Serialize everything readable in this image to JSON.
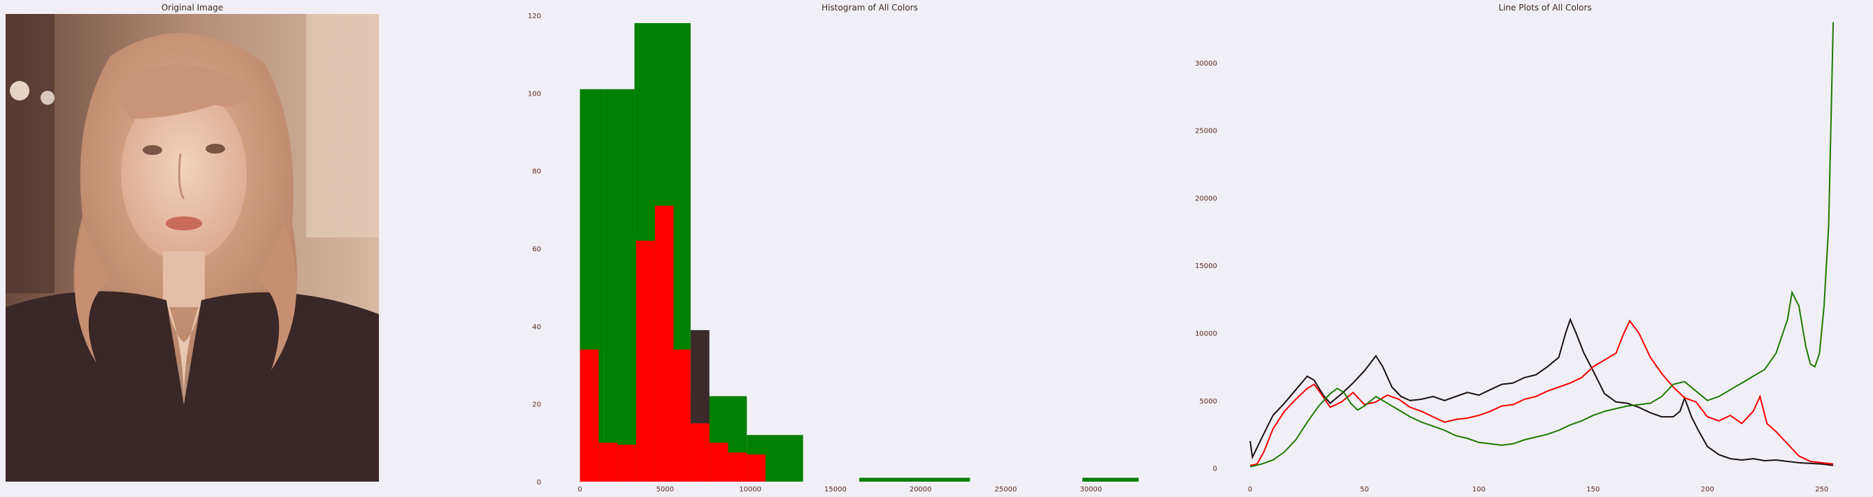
{
  "panels": {
    "image_title": "Original Image",
    "hist_title": "Histogram of All Colors",
    "line_title": "Line Plots of All Colors"
  },
  "colors": {
    "background": "#f0eff6",
    "red": "#ff0000",
    "green": "#008000",
    "dark": "#3d2b2b",
    "line_black": "#1a0f0f",
    "line_red": "#ff0000",
    "line_green": "#1e7a00"
  },
  "chart_data": [
    {
      "type": "bar",
      "title": "Histogram of All Colors",
      "xlabel": "",
      "ylabel": "",
      "xlim": [
        -800,
        34500
      ],
      "ylim": [
        0,
        120
      ],
      "grid": false,
      "xticks": [
        0,
        5000,
        10000,
        15000,
        20000,
        25000,
        30000
      ],
      "yticks": [
        0,
        20,
        40,
        60,
        80,
        100,
        120
      ],
      "series": [
        {
          "color": "green",
          "bins": [
            {
              "x0": 0,
              "x1": 1400,
              "y": 101
            },
            {
              "x0": 1400,
              "x1": 3200,
              "y": 101
            },
            {
              "x0": 3200,
              "x1": 6500,
              "y": 118
            },
            {
              "x0": 6500,
              "x1": 9800,
              "y": 22
            },
            {
              "x0": 9800,
              "x1": 13100,
              "y": 12
            },
            {
              "x0": 16400,
              "x1": 22900,
              "y": 1
            },
            {
              "x0": 29500,
              "x1": 32800,
              "y": 1
            }
          ]
        },
        {
          "color": "dark",
          "bins": [
            {
              "x0": 6500,
              "x1": 7600,
              "y": 39
            }
          ]
        },
        {
          "color": "red",
          "bins": [
            {
              "x0": 0,
              "x1": 1100,
              "y": 34
            },
            {
              "x0": 1100,
              "x1": 2200,
              "y": 10
            },
            {
              "x0": 2200,
              "x1": 3300,
              "y": 9.5
            },
            {
              "x0": 3300,
              "x1": 4400,
              "y": 62
            },
            {
              "x0": 4400,
              "x1": 5500,
              "y": 71
            },
            {
              "x0": 5500,
              "x1": 6500,
              "y": 34
            },
            {
              "x0": 6500,
              "x1": 7600,
              "y": 15
            },
            {
              "x0": 7600,
              "x1": 8700,
              "y": 10
            },
            {
              "x0": 8700,
              "x1": 9800,
              "y": 7.5
            },
            {
              "x0": 9800,
              "x1": 10900,
              "y": 7
            }
          ]
        }
      ]
    },
    {
      "type": "line",
      "title": "Line Plots of All Colors",
      "xlabel": "",
      "ylabel": "",
      "xlim": [
        -4,
        262
      ],
      "ylim": [
        -1000,
        33500
      ],
      "grid": false,
      "xticks": [
        0,
        50,
        100,
        150,
        200,
        250
      ],
      "yticks": [
        0,
        5000,
        10000,
        15000,
        20000,
        25000,
        30000
      ],
      "series": [
        {
          "color": "line_black",
          "points": [
            [
              0,
              2000
            ],
            [
              1,
              800
            ],
            [
              5,
              2200
            ],
            [
              10,
              3900
            ],
            [
              15,
              4800
            ],
            [
              20,
              5800
            ],
            [
              25,
              6800
            ],
            [
              28,
              6500
            ],
            [
              32,
              5400
            ],
            [
              35,
              4800
            ],
            [
              40,
              5500
            ],
            [
              45,
              6300
            ],
            [
              50,
              7200
            ],
            [
              55,
              8300
            ],
            [
              58,
              7500
            ],
            [
              62,
              6000
            ],
            [
              66,
              5300
            ],
            [
              70,
              5000
            ],
            [
              75,
              5100
            ],
            [
              80,
              5300
            ],
            [
              85,
              5000
            ],
            [
              90,
              5300
            ],
            [
              95,
              5600
            ],
            [
              100,
              5400
            ],
            [
              105,
              5800
            ],
            [
              110,
              6200
            ],
            [
              115,
              6300
            ],
            [
              120,
              6700
            ],
            [
              125,
              6900
            ],
            [
              130,
              7500
            ],
            [
              135,
              8200
            ],
            [
              138,
              10000
            ],
            [
              140,
              11000
            ],
            [
              143,
              9800
            ],
            [
              146,
              8500
            ],
            [
              150,
              7200
            ],
            [
              155,
              5500
            ],
            [
              160,
              4900
            ],
            [
              165,
              4800
            ],
            [
              170,
              4500
            ],
            [
              175,
              4100
            ],
            [
              180,
              3800
            ],
            [
              185,
              3800
            ],
            [
              188,
              4200
            ],
            [
              190,
              5200
            ],
            [
              193,
              3800
            ],
            [
              196,
              2800
            ],
            [
              200,
              1600
            ],
            [
              205,
              1000
            ],
            [
              210,
              700
            ],
            [
              215,
              600
            ],
            [
              220,
              700
            ],
            [
              225,
              550
            ],
            [
              230,
              600
            ],
            [
              235,
              500
            ],
            [
              240,
              400
            ],
            [
              245,
              350
            ],
            [
              250,
              300
            ],
            [
              255,
              200
            ]
          ]
        },
        {
          "color": "line_red",
          "points": [
            [
              0,
              200
            ],
            [
              3,
              300
            ],
            [
              6,
              1200
            ],
            [
              10,
              2900
            ],
            [
              15,
              4200
            ],
            [
              20,
              5100
            ],
            [
              25,
              5900
            ],
            [
              28,
              6200
            ],
            [
              31,
              5500
            ],
            [
              35,
              4500
            ],
            [
              40,
              4900
            ],
            [
              45,
              5600
            ],
            [
              50,
              4700
            ],
            [
              55,
              4900
            ],
            [
              60,
              5400
            ],
            [
              65,
              5100
            ],
            [
              70,
              4500
            ],
            [
              75,
              4200
            ],
            [
              80,
              3800
            ],
            [
              85,
              3400
            ],
            [
              90,
              3600
            ],
            [
              95,
              3700
            ],
            [
              100,
              3900
            ],
            [
              105,
              4200
            ],
            [
              110,
              4600
            ],
            [
              115,
              4700
            ],
            [
              120,
              5100
            ],
            [
              125,
              5300
            ],
            [
              130,
              5700
            ],
            [
              135,
              6000
            ],
            [
              140,
              6300
            ],
            [
              145,
              6700
            ],
            [
              150,
              7500
            ],
            [
              155,
              8000
            ],
            [
              160,
              8500
            ],
            [
              163,
              9800
            ],
            [
              166,
              10900
            ],
            [
              170,
              10000
            ],
            [
              175,
              8200
            ],
            [
              180,
              7000
            ],
            [
              185,
              6000
            ],
            [
              190,
              5200
            ],
            [
              195,
              4900
            ],
            [
              200,
              3800
            ],
            [
              205,
              3500
            ],
            [
              210,
              3900
            ],
            [
              215,
              3300
            ],
            [
              220,
              4200
            ],
            [
              223,
              5300
            ],
            [
              226,
              3300
            ],
            [
              230,
              2700
            ],
            [
              235,
              1800
            ],
            [
              240,
              900
            ],
            [
              245,
              500
            ],
            [
              250,
              400
            ],
            [
              255,
              300
            ]
          ]
        },
        {
          "color": "line_green",
          "points": [
            [
              0,
              100
            ],
            [
              5,
              300
            ],
            [
              10,
              600
            ],
            [
              15,
              1200
            ],
            [
              20,
              2100
            ],
            [
              25,
              3400
            ],
            [
              30,
              4600
            ],
            [
              35,
              5500
            ],
            [
              38,
              5900
            ],
            [
              41,
              5600
            ],
            [
              44,
              4800
            ],
            [
              47,
              4300
            ],
            [
              50,
              4600
            ],
            [
              55,
              5300
            ],
            [
              60,
              4800
            ],
            [
              65,
              4300
            ],
            [
              70,
              3800
            ],
            [
              75,
              3400
            ],
            [
              80,
              3100
            ],
            [
              85,
              2800
            ],
            [
              90,
              2400
            ],
            [
              95,
              2200
            ],
            [
              100,
              1900
            ],
            [
              105,
              1800
            ],
            [
              110,
              1700
            ],
            [
              115,
              1800
            ],
            [
              120,
              2100
            ],
            [
              125,
              2300
            ],
            [
              130,
              2500
            ],
            [
              135,
              2800
            ],
            [
              140,
              3200
            ],
            [
              145,
              3500
            ],
            [
              150,
              3900
            ],
            [
              155,
              4200
            ],
            [
              160,
              4400
            ],
            [
              165,
              4600
            ],
            [
              170,
              4700
            ],
            [
              175,
              4800
            ],
            [
              180,
              5300
            ],
            [
              185,
              6200
            ],
            [
              190,
              6400
            ],
            [
              195,
              5700
            ],
            [
              200,
              5000
            ],
            [
              205,
              5300
            ],
            [
              210,
              5800
            ],
            [
              215,
              6300
            ],
            [
              220,
              6800
            ],
            [
              225,
              7300
            ],
            [
              230,
              8500
            ],
            [
              235,
              11000
            ],
            [
              237,
              13000
            ],
            [
              240,
              12000
            ],
            [
              243,
              9000
            ],
            [
              245,
              7700
            ],
            [
              247,
              7500
            ],
            [
              249,
              8500
            ],
            [
              251,
              12000
            ],
            [
              253,
              18000
            ],
            [
              255,
              33000
            ]
          ]
        }
      ]
    }
  ]
}
